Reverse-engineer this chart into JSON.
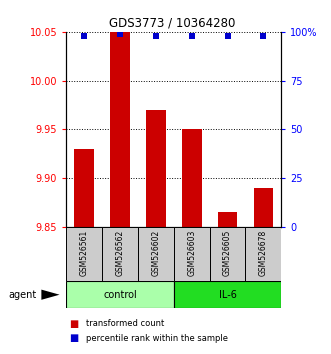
{
  "title": "GDS3773 / 10364280",
  "samples": [
    "GSM526561",
    "GSM526562",
    "GSM526602",
    "GSM526603",
    "GSM526605",
    "GSM526678"
  ],
  "bar_values": [
    9.93,
    10.05,
    9.97,
    9.95,
    9.865,
    9.89
  ],
  "percentile_values": [
    98,
    99,
    98,
    98,
    98,
    98
  ],
  "ylim_left": [
    9.85,
    10.05
  ],
  "ylim_right": [
    0,
    100
  ],
  "yticks_left": [
    9.85,
    9.9,
    9.95,
    10.0,
    10.05
  ],
  "yticks_right": [
    0,
    25,
    50,
    75,
    100
  ],
  "ytick_labels_right": [
    "0",
    "25",
    "50",
    "75",
    "100%"
  ],
  "bar_color": "#cc0000",
  "dot_color": "#0000cc",
  "bar_bottom": 9.85,
  "groups": [
    {
      "label": "control",
      "indices": [
        0,
        1,
        2
      ],
      "color": "#aaffaa"
    },
    {
      "label": "IL-6",
      "indices": [
        3,
        4,
        5
      ],
      "color": "#22dd22"
    }
  ],
  "agent_label": "agent",
  "legend_items": [
    {
      "label": "transformed count",
      "color": "#cc0000"
    },
    {
      "label": "percentile rank within the sample",
      "color": "#0000cc"
    }
  ],
  "sample_box_color": "#cccccc",
  "bar_width": 0.55
}
